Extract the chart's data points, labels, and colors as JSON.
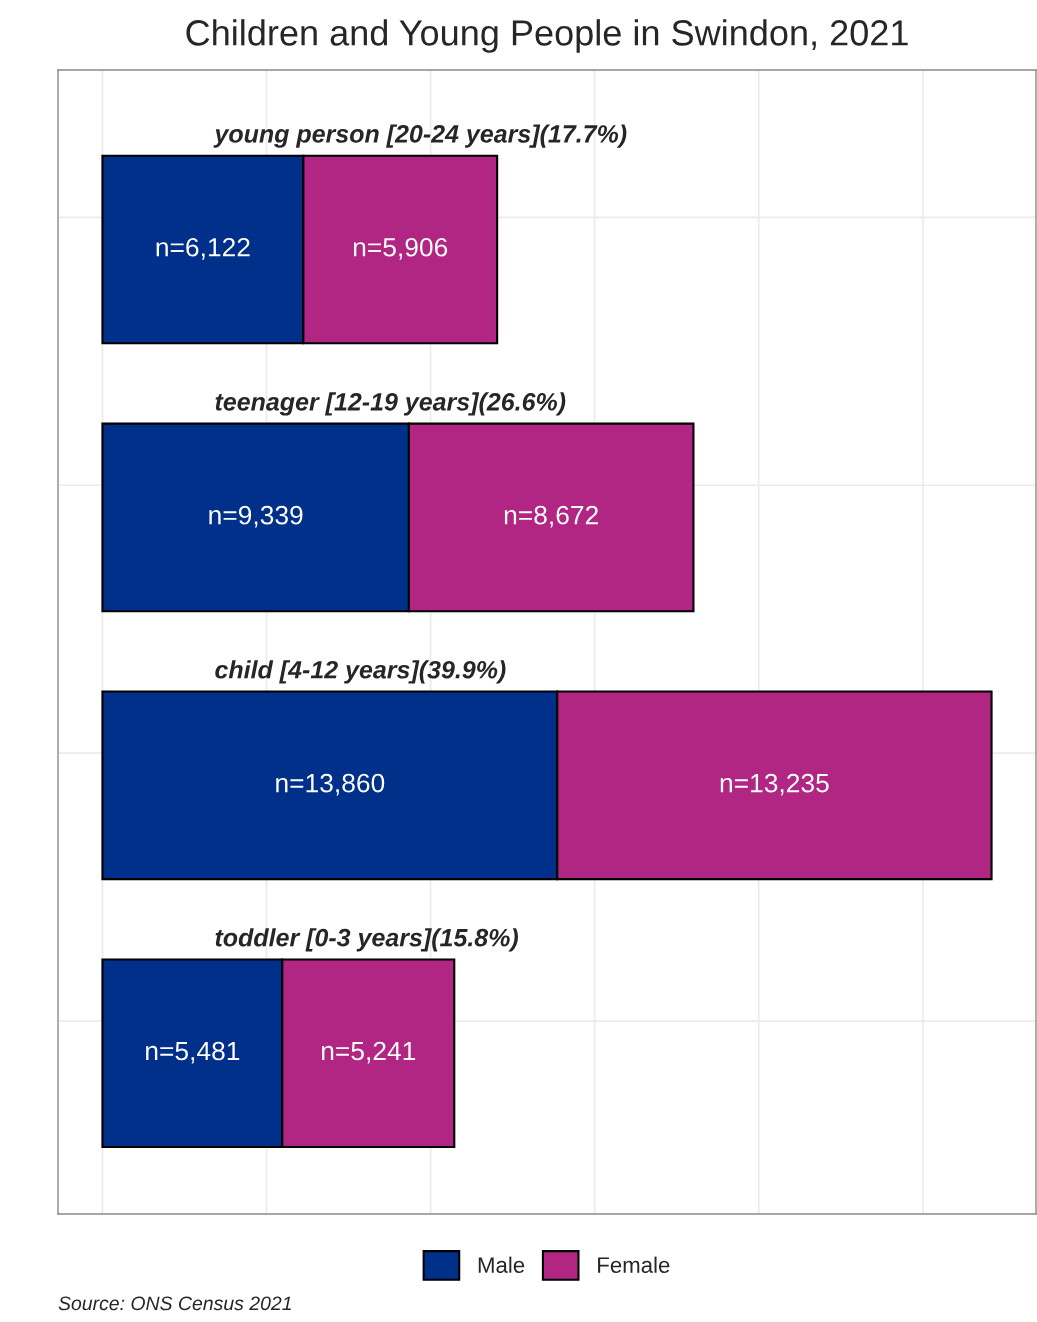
{
  "chart_data": {
    "type": "bar",
    "orientation": "horizontal",
    "stacked": true,
    "title": "Children and Young People in Swindon, 2021",
    "categories": [
      "young person [20-24 years](17.7%)",
      "teenager [12-19 years](26.6%)",
      "child [4-12 years](39.9%)",
      "toddler [0-3 years](15.8%)"
    ],
    "series": [
      {
        "name": "Male",
        "color": "#00308a",
        "values": [
          6122,
          9339,
          13860,
          5481
        ],
        "value_labels": [
          "n=6,122",
          "n=9,339",
          "n=13,860",
          "n=5,481"
        ]
      },
      {
        "name": "Female",
        "color": "#b12583",
        "values": [
          5906,
          8672,
          13235,
          5241
        ],
        "value_labels": [
          "n=5,906",
          "n=8,672",
          "n=13,235",
          "n=5,241"
        ]
      }
    ],
    "tick_labels": false,
    "grid": true,
    "legend": "bottom",
    "annotations": [
      "Source: ONS Census 2021"
    ]
  }
}
